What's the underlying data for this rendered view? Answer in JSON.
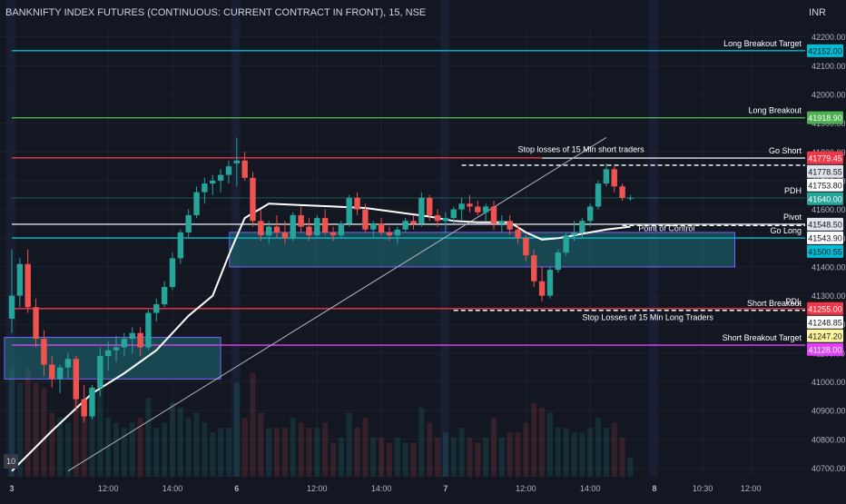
{
  "title": "BANKNIFTY INDEX FUTURES (CONTINUOUS: CURRENT CONTRACT IN FRONT), 15, NSE",
  "currency": "INR",
  "corner_badge": "10",
  "colors": {
    "bg": "#131722",
    "grid": "#1e222d",
    "up": "#26a69a",
    "down": "#ef5350",
    "text": "#d1d4dc",
    "session": "#1c2541",
    "vwap": "#ffffff",
    "box": "#1f6f78",
    "trendline": "#b2b5be"
  },
  "chart_data": {
    "type": "candlestick",
    "title": "BANKNIFTY INDEX FUTURES (CONTINUOUS: CURRENT CONTRACT IN FRONT), 15, NSE",
    "ylim": [
      40670,
      42240
    ],
    "y_ticks": [
      40700,
      40800,
      40900,
      41000,
      41100,
      41200,
      41300,
      41400,
      41500,
      41600,
      41700,
      41800,
      41900,
      42000,
      42100,
      42200
    ],
    "y_tick_labels": [
      "40700.00",
      "40800.00",
      "40900.00",
      "41000.00",
      "41100.00",
      "41200.00",
      "41300.00",
      "41400.00",
      "41500.00",
      "41600.00",
      "41700.00",
      "41800.00",
      "41900.00",
      "42000.00",
      "42100.00",
      "42200.00"
    ],
    "x_tick_labels": [
      "3",
      "12:00",
      "14:00",
      "6",
      "12:00",
      "14:00",
      "7",
      "12:00",
      "14:00",
      "8",
      "10:30",
      "12:00"
    ],
    "x_tick_bold": [
      true,
      false,
      false,
      true,
      false,
      false,
      true,
      false,
      false,
      true,
      false,
      false
    ],
    "x_tick_index": [
      0,
      12,
      20,
      28,
      38,
      46,
      54,
      64,
      72,
      80,
      86,
      92
    ],
    "sessions": [
      {
        "start": 0,
        "end": 27
      },
      {
        "start": 28,
        "end": 53
      },
      {
        "start": 54,
        "end": 79
      }
    ],
    "candles": [
      [
        41220,
        41460,
        41170,
        41300
      ],
      [
        41300,
        41430,
        41260,
        41410
      ],
      [
        41410,
        41460,
        41240,
        41260
      ],
      [
        41260,
        41290,
        41120,
        41150
      ],
      [
        41150,
        41180,
        41020,
        41060
      ],
      [
        41060,
        41090,
        40980,
        41010
      ],
      [
        41010,
        41060,
        40960,
        41050
      ],
      [
        41050,
        41100,
        41010,
        41080
      ],
      [
        41080,
        41090,
        40900,
        40940
      ],
      [
        40940,
        40990,
        40860,
        40880
      ],
      [
        40880,
        40990,
        40870,
        40980
      ],
      [
        40980,
        41120,
        40950,
        41090
      ],
      [
        41090,
        41140,
        41040,
        41110
      ],
      [
        41110,
        41160,
        41070,
        41120
      ],
      [
        41120,
        41170,
        41090,
        41150
      ],
      [
        41150,
        41190,
        41100,
        41170
      ],
      [
        41170,
        41190,
        41090,
        41120
      ],
      [
        41120,
        41250,
        41110,
        41240
      ],
      [
        41240,
        41290,
        41210,
        41270
      ],
      [
        41270,
        41350,
        41260,
        41330
      ],
      [
        41330,
        41450,
        41320,
        41430
      ],
      [
        41430,
        41530,
        41410,
        41520
      ],
      [
        41520,
        41600,
        41500,
        41580
      ],
      [
        41580,
        41680,
        41570,
        41660
      ],
      [
        41660,
        41710,
        41620,
        41690
      ],
      [
        41690,
        41720,
        41650,
        41700
      ],
      [
        41700,
        41740,
        41660,
        41720
      ],
      [
        41720,
        41770,
        41690,
        41750
      ],
      [
        41760,
        41850,
        41680,
        41770
      ],
      [
        41770,
        41800,
        41700,
        41710
      ],
      [
        41710,
        41730,
        41540,
        41560
      ],
      [
        41560,
        41600,
        41490,
        41510
      ],
      [
        41510,
        41560,
        41480,
        41540
      ],
      [
        41540,
        41580,
        41500,
        41520
      ],
      [
        41520,
        41560,
        41480,
        41500
      ],
      [
        41500,
        41590,
        41490,
        41580
      ],
      [
        41580,
        41610,
        41520,
        41540
      ],
      [
        41540,
        41570,
        41490,
        41510
      ],
      [
        41510,
        41580,
        41500,
        41570
      ],
      [
        41570,
        41600,
        41510,
        41520
      ],
      [
        41520,
        41540,
        41490,
        41510
      ],
      [
        41510,
        41560,
        41500,
        41550
      ],
      [
        41550,
        41650,
        41540,
        41640
      ],
      [
        41640,
        41660,
        41580,
        41600
      ],
      [
        41600,
        41620,
        41520,
        41530
      ],
      [
        41530,
        41560,
        41500,
        41550
      ],
      [
        41550,
        41570,
        41510,
        41520
      ],
      [
        41520,
        41540,
        41490,
        41510
      ],
      [
        41510,
        41540,
        41480,
        41530
      ],
      [
        41530,
        41570,
        41520,
        41560
      ],
      [
        41560,
        41580,
        41530,
        41550
      ],
      [
        41550,
        41660,
        41540,
        41640
      ],
      [
        41640,
        41650,
        41560,
        41580
      ],
      [
        41580,
        41600,
        41540,
        41560
      ],
      [
        41560,
        41590,
        41520,
        41570
      ],
      [
        41570,
        41610,
        41550,
        41600
      ],
      [
        41600,
        41640,
        41560,
        41620
      ],
      [
        41620,
        41650,
        41590,
        41610
      ],
      [
        41610,
        41630,
        41580,
        41590
      ],
      [
        41590,
        41620,
        41560,
        41610
      ],
      [
        41610,
        41630,
        41530,
        41550
      ],
      [
        41550,
        41580,
        41520,
        41560
      ],
      [
        41560,
        41580,
        41510,
        41530
      ],
      [
        41530,
        41550,
        41480,
        41500
      ],
      [
        41500,
        41510,
        41420,
        41440
      ],
      [
        41440,
        41460,
        41330,
        41350
      ],
      [
        41350,
        41400,
        41280,
        41300
      ],
      [
        41300,
        41400,
        41290,
        41390
      ],
      [
        41390,
        41460,
        41380,
        41450
      ],
      [
        41450,
        41520,
        41440,
        41510
      ],
      [
        41510,
        41560,
        41490,
        41520
      ],
      [
        41520,
        41570,
        41500,
        41560
      ],
      [
        41560,
        41620,
        41540,
        41610
      ],
      [
        41610,
        41700,
        41600,
        41690
      ],
      [
        41690,
        41760,
        41680,
        41740
      ],
      [
        41740,
        41750,
        41660,
        41680
      ],
      [
        41680,
        41690,
        41630,
        41640
      ],
      [
        41640,
        41650,
        41630,
        41640
      ]
    ],
    "vwap": [
      [
        0,
        40690
      ],
      [
        5,
        40830
      ],
      [
        10,
        40960
      ],
      [
        14,
        41030
      ],
      [
        18,
        41110
      ],
      [
        22,
        41230
      ],
      [
        25,
        41300
      ],
      [
        27,
        41440
      ],
      [
        29,
        41570
      ],
      [
        32,
        41620
      ],
      [
        36,
        41615
      ],
      [
        40,
        41610
      ],
      [
        44,
        41605
      ],
      [
        48,
        41590
      ],
      [
        52,
        41575
      ],
      [
        55,
        41560
      ],
      [
        58,
        41555
      ],
      [
        62,
        41555
      ],
      [
        64,
        41520
      ],
      [
        66,
        41495
      ],
      [
        68,
        41500
      ],
      [
        70,
        41510
      ],
      [
        72,
        41520
      ],
      [
        74,
        41530
      ],
      [
        77,
        41540
      ]
    ],
    "trendline": {
      "from": [
        7,
        40690
      ],
      "to": [
        74,
        41850
      ]
    },
    "boxes": [
      {
        "start": 28,
        "end": 90,
        "top": 41520,
        "bottom": 41400
      },
      {
        "start": 0,
        "end": 26,
        "top": 41155,
        "bottom": 41010
      }
    ],
    "levels": [
      {
        "name": "Long Breakout Target",
        "value": 42152.0,
        "label": "42152.00",
        "color": "#00bcd4",
        "style": "solid",
        "from": 0
      },
      {
        "name": "Long Breakout",
        "value": 41918.9,
        "label": "41918.90",
        "color": "#4caf50",
        "style": "solid",
        "from": 0
      },
      {
        "name": "",
        "value": 41779.45,
        "label": "41779.45",
        "color": "#f23645",
        "style": "solid",
        "from": 0,
        "until": 66
      },
      {
        "name": "Go Short",
        "value": 41778.55,
        "label": "41778.55",
        "color": "#e0e3eb",
        "style": "solid",
        "from": 66
      },
      {
        "name": "",
        "value": 41753.8,
        "label": "41753.80",
        "color": "#ffffff",
        "style": "dashed",
        "from": 56
      },
      {
        "name": "PDH",
        "value": 41640.0,
        "label": "41640.00",
        "color": "#26a69a",
        "style": "faint",
        "from": 0
      },
      {
        "name": "Pivot",
        "value": 41548.5,
        "label": "41548.50",
        "color": "#e0e3eb",
        "style": "solid",
        "from": 0
      },
      {
        "name": "",
        "value": 41543.9,
        "label": "41543.90",
        "color": "#ffffff",
        "style": "dashed",
        "from": 76
      },
      {
        "name": "Go Long",
        "value": 41500.55,
        "label": "41500.55",
        "color": "#00bcd4",
        "style": "solid",
        "from": 0
      },
      {
        "name": "PDL",
        "value": 41255.0,
        "label": "41255.00",
        "color": "#f23645",
        "style": "solid",
        "from": 0
      },
      {
        "name": "Short Breakout",
        "value": 41248.85,
        "label": "41248.85",
        "color": "#ffffff",
        "style": "dashed",
        "from": 55
      },
      {
        "name": "",
        "value": 41247.2,
        "label": "41247.20",
        "color": "#fff59d",
        "style": "none"
      },
      {
        "name": "Short Breakout Target",
        "value": 41128.0,
        "label": "41128.00",
        "color": "#e040fb",
        "style": "solid",
        "from": 0
      }
    ],
    "annotations": [
      {
        "text": "Stop losses of 15 Min short traders",
        "x_index": 63,
        "value": 41800
      },
      {
        "text": "Point of Control",
        "x_index": 78,
        "value": 41525
      },
      {
        "text": "Stop Losses of  15 Min Long Traders",
        "x_index": 71,
        "value": 41215
      }
    ]
  }
}
